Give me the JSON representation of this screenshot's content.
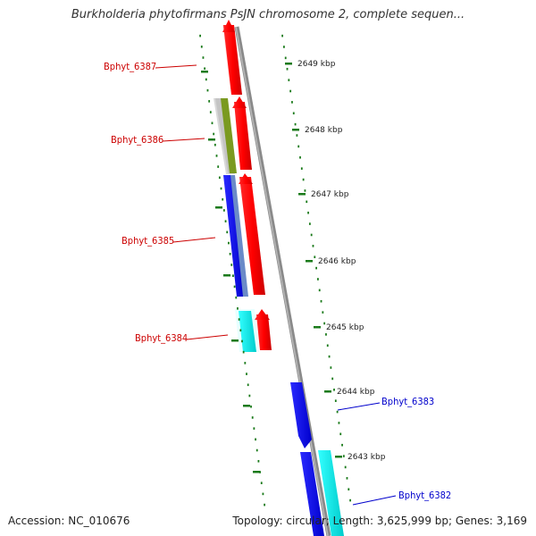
{
  "title": "Burkholderia phytofirmans PsJN chromosome 2, complete sequen...",
  "footer": {
    "accession": "Accession: NC_010676",
    "topology": "Topology: circular; Length: 3,625,999 bp; Genes: 3,169"
  },
  "colors": {
    "reverse_label": "#cc0000",
    "forward_label": "#0000cc",
    "tick": "#1a7a1a",
    "backbone": "#888888"
  },
  "ticks": [
    "2649 kbp",
    "2648 kbp",
    "2647 kbp",
    "2646 kbp",
    "2645 kbp",
    "2644 kbp",
    "2643 kbp"
  ],
  "genes": [
    {
      "name": "Bphyt_6387",
      "strand": "reverse"
    },
    {
      "name": "Bphyt_6386",
      "strand": "reverse"
    },
    {
      "name": "Bphyt_6385",
      "strand": "reverse"
    },
    {
      "name": "Bphyt_6384",
      "strand": "reverse"
    },
    {
      "name": "Bphyt_6383",
      "strand": "forward"
    },
    {
      "name": "Bphyt_6382",
      "strand": "forward"
    }
  ]
}
